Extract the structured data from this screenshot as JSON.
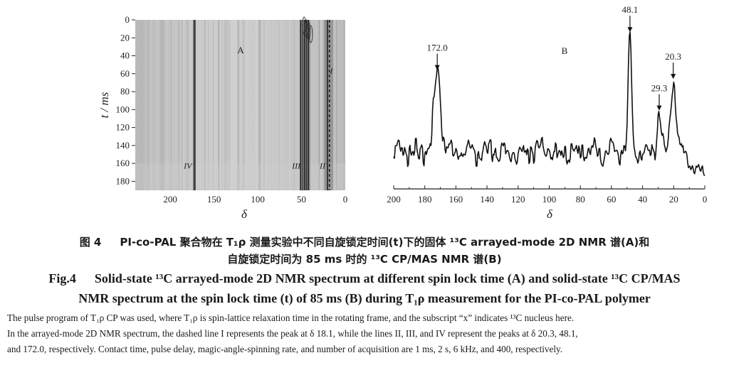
{
  "figure": {
    "panel_a": {
      "label": "A",
      "y_axis_title": "t / ms",
      "x_axis_title": "δ",
      "x_ticks": [
        200,
        150,
        100,
        50,
        0
      ],
      "y_ticks": [
        0,
        20,
        40,
        60,
        80,
        100,
        120,
        140,
        160,
        180
      ],
      "line_labels": [
        {
          "text": "I",
          "delta": 18.1
        },
        {
          "text": "II",
          "delta": 20.3
        },
        {
          "text": "III",
          "delta": 48.1
        },
        {
          "text": "IV",
          "delta": 172.0
        }
      ]
    },
    "panel_b": {
      "label": "B",
      "x_axis_title": "δ",
      "x_ticks": [
        200,
        180,
        160,
        140,
        120,
        100,
        80,
        60,
        40,
        20,
        0
      ],
      "peak_labels": [
        {
          "text": "172.0",
          "delta": 172.0
        },
        {
          "text": "48.1",
          "delta": 48.1
        },
        {
          "text": "29.3",
          "delta": 29.3
        },
        {
          "text": "20.3",
          "delta": 20.3
        }
      ]
    }
  },
  "chart_data": [
    {
      "type": "heatmap",
      "panel": "A",
      "xlabel": "δ",
      "ylabel": "t / ms",
      "xlim": [
        0,
        240
      ],
      "ylim": [
        0,
        190
      ],
      "x_reversed": true,
      "ridges_delta": [
        172.0,
        48.1,
        20.3,
        18.1
      ]
    },
    {
      "type": "line",
      "panel": "B",
      "xlabel": "δ",
      "xlim": [
        0,
        200
      ],
      "x_reversed": true,
      "peaks": [
        {
          "delta": 172.0,
          "height": 0.62
        },
        {
          "delta": 48.1,
          "height": 0.92
        },
        {
          "delta": 29.3,
          "height": 0.3
        },
        {
          "delta": 20.3,
          "height": 0.55
        }
      ]
    }
  ],
  "caption": {
    "cn_fig": "图 4",
    "cn_line1": "PI-co-PAL 聚合物在 T₁ρ 测量实验中不同自旋锁定时间(t)下的固体 ¹³C arrayed-mode 2D NMR 谱(A)和",
    "cn_line2": "自旋锁定时间为 85 ms 时的 ¹³C CP/MAS NMR 谱(B)",
    "en_fig": "Fig.4",
    "en_line1": "Solid-state ¹³C arrayed-mode 2D NMR spectrum at different spin lock time (A) and solid-state ¹³C CP/MAS",
    "en_line2": "NMR spectrum at the spin lock time (t) of 85 ms (B) during T₁ρ measurement for the PI-co-PAL polymer"
  },
  "notes": [
    "The pulse program of T₁ρ CP was used, where T₁ρ is spin-lattice relaxation time in the rotating frame, and the subscript “x” indicates ¹³C nucleus here.",
    "In the arrayed-mode 2D NMR spectrum, the dashed line I represents the peak at δ 18.1, while the lines II, III, and IV represent the peaks at δ 20.3, 48.1,",
    "and 172.0, respectively. Contact time, pulse delay, magic-angle-spinning rate, and number of acquisition are 1 ms, 2 s, 6 kHz, and 400, respectively."
  ]
}
